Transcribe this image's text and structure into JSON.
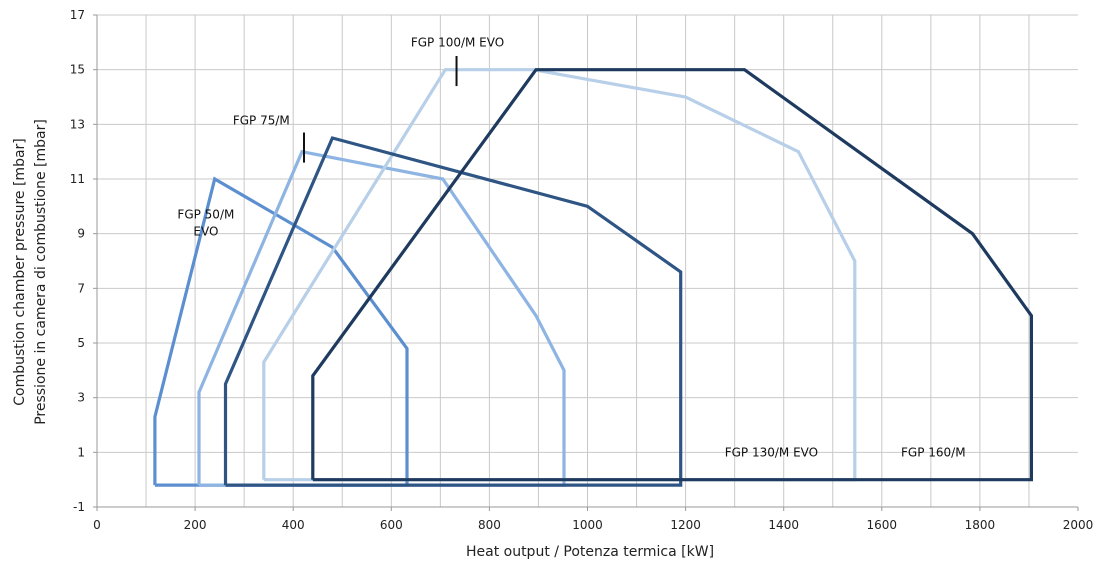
{
  "chart_data": {
    "type": "line",
    "title": "",
    "xlabel": "Heat output / Potenza termica [kW]",
    "ylabel_lines": [
      "Combustion chamber pressure [mbar]",
      "Pressione in camera di combustione [mbar]"
    ],
    "xlim": [
      0,
      2000
    ],
    "ylim": [
      -1,
      17
    ],
    "xticks": [
      0,
      200,
      400,
      600,
      800,
      1000,
      1200,
      1400,
      1600,
      1800,
      2000
    ],
    "yticks": [
      -1,
      1,
      3,
      5,
      7,
      9,
      11,
      13,
      15,
      17
    ],
    "x_minor_step": 100,
    "grid": true,
    "legend": "none",
    "series": [
      {
        "name": "FGP 50/M EVO",
        "color": "#5b8fd0",
        "points": [
          [
            118,
            -0.2
          ],
          [
            118,
            2.3
          ],
          [
            240,
            11.0
          ],
          [
            480,
            8.5
          ],
          [
            632,
            4.8
          ],
          [
            632,
            -0.2
          ],
          [
            118,
            -0.2
          ]
        ]
      },
      {
        "name": "FGP 75/M",
        "color": "#8db4e2",
        "points": [
          [
            208,
            -0.2
          ],
          [
            208,
            3.2
          ],
          [
            418,
            12.0
          ],
          [
            705,
            11.0
          ],
          [
            895,
            6.0
          ],
          [
            952,
            4.0
          ],
          [
            952,
            -0.2
          ],
          [
            208,
            -0.2
          ]
        ]
      },
      {
        "name": "FGP 100/M EVO",
        "color": "#b7cfe8",
        "points": [
          [
            340,
            0.0
          ],
          [
            340,
            4.3
          ],
          [
            710,
            15.0
          ],
          [
            890,
            15.0
          ],
          [
            1200,
            14.0
          ],
          [
            1430,
            12.0
          ],
          [
            1545,
            8.0
          ],
          [
            1545,
            0.0
          ],
          [
            340,
            0.0
          ]
        ]
      },
      {
        "name": "FGP 130/M EVO",
        "color": "#2f5585",
        "points": [
          [
            262,
            -0.2
          ],
          [
            262,
            3.5
          ],
          [
            480,
            12.5
          ],
          [
            1000,
            10.0
          ],
          [
            1190,
            7.6
          ],
          [
            1190,
            -0.2
          ],
          [
            262,
            -0.2
          ]
        ]
      },
      {
        "name": "FGP 160/M",
        "color": "#1e3a5f",
        "points": [
          [
            440,
            0.0
          ],
          [
            440,
            3.8
          ],
          [
            895,
            15.0
          ],
          [
            1320,
            15.0
          ],
          [
            1785,
            9.0
          ],
          [
            1905,
            6.0
          ],
          [
            1905,
            0.0
          ],
          [
            440,
            0.0
          ]
        ]
      }
    ],
    "annotations": [
      {
        "id": "ann-50",
        "lines": [
          "FGP 50/M",
          "EVO"
        ],
        "x": 222,
        "y": 9.55
      },
      {
        "id": "ann-75",
        "lines": [
          "FGP 75/M"
        ],
        "x": 335,
        "y": 13.0,
        "leader": [
          [
            422,
            11.6
          ],
          [
            422,
            12.7
          ]
        ]
      },
      {
        "id": "ann-100",
        "lines": [
          "FGP 100/M EVO"
        ],
        "x": 735,
        "y": 15.85,
        "leader": [
          [
            733,
            14.4
          ],
          [
            733,
            15.5
          ]
        ]
      },
      {
        "id": "ann-130",
        "lines": [
          "FGP 130/M EVO"
        ],
        "x": 1375,
        "y": 0.85
      },
      {
        "id": "ann-160",
        "lines": [
          "FGP 160/M"
        ],
        "x": 1705,
        "y": 0.85
      }
    ]
  }
}
